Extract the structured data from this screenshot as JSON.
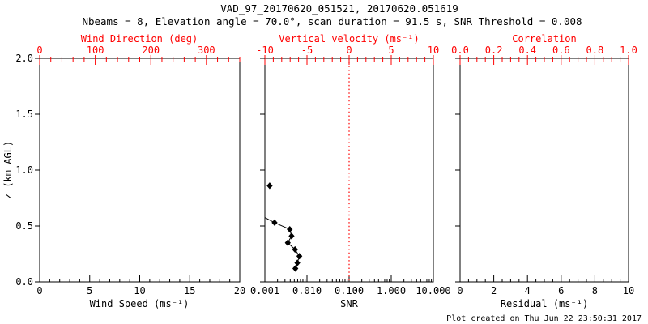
{
  "title": "VAD_97_20170620_051521, 20170620.051619",
  "subtitle": "Nbeams = 8, Elevation angle = 70.0°, scan duration = 91.5 s, SNR Threshold = 0.008",
  "footer": "Plot created on Thu Jun 22 23:50:31 2017",
  "ylabel": "z (km AGL)",
  "colors": {
    "axis": "#000000",
    "secondary_axis": "#ff0000",
    "data": "#000000",
    "background": "#ffffff"
  },
  "chart_data": [
    {
      "type": "line",
      "panel": "wind",
      "x_bottom": {
        "label": "Wind Speed (ms⁻¹)",
        "scale": "linear",
        "range": [
          0,
          20
        ],
        "ticks": [
          0,
          5,
          10,
          15,
          20
        ],
        "tick_labels": [
          "0",
          "5",
          "10",
          "15",
          "20"
        ],
        "minor_step": 1
      },
      "x_top": {
        "label": "Wind Direction (deg)",
        "scale": "linear",
        "range": [
          0,
          360
        ],
        "ticks": [
          0,
          100,
          200,
          300
        ],
        "tick_labels": [
          "0",
          "100",
          "200",
          "300"
        ],
        "minor_step": 20
      },
      "y": {
        "range": [
          0,
          2
        ],
        "ticks": [
          0,
          0.5,
          1.0,
          1.5,
          2.0
        ],
        "tick_labels": [
          "0.0",
          "0.5",
          "1.0",
          "1.5",
          "2.0"
        ],
        "show_labels": true
      },
      "series": []
    },
    {
      "type": "line",
      "panel": "snr",
      "x_bottom": {
        "label": "SNR",
        "scale": "log",
        "range": [
          0.001,
          10
        ],
        "ticks": [
          0.001,
          0.01,
          0.1,
          1,
          10
        ],
        "tick_labels": [
          "0.001",
          "0.010",
          "0.100",
          "1.000",
          "10.000"
        ]
      },
      "x_top": {
        "label": "Vertical velocity (ms⁻¹)",
        "scale": "linear",
        "range": [
          -10,
          10
        ],
        "ticks": [
          -10,
          -5,
          0,
          5,
          10
        ],
        "tick_labels": [
          "-10",
          "-5",
          "0",
          "5",
          "10"
        ],
        "minor_step": 1
      },
      "y": {
        "range": [
          0,
          2
        ],
        "ticks": [
          0,
          0.5,
          1.0,
          1.5,
          2.0
        ],
        "tick_labels": [
          "0.0",
          "0.5",
          "1.0",
          "1.5",
          "2.0"
        ],
        "show_labels": false
      },
      "refline": {
        "axis": "x_top",
        "value": 0,
        "style": "dotted",
        "color": "#ff0000"
      },
      "series": [
        {
          "name": "snr-profile-line",
          "draw": "line",
          "points": [
            [
              0.001,
              0.575
            ],
            [
              0.0017,
              0.53
            ],
            [
              0.0039,
              0.47
            ],
            [
              0.0043,
              0.41
            ],
            [
              0.0035,
              0.35
            ],
            [
              0.0052,
              0.29
            ],
            [
              0.0066,
              0.23
            ],
            [
              0.0059,
              0.17
            ],
            [
              0.0053,
              0.12
            ]
          ]
        },
        {
          "name": "snr-profile-markers",
          "draw": "markers",
          "marker": "filled-diamond",
          "points": [
            [
              0.0013,
              0.86
            ],
            [
              0.0017,
              0.53
            ],
            [
              0.0039,
              0.47
            ],
            [
              0.0043,
              0.41
            ],
            [
              0.0035,
              0.35
            ],
            [
              0.0052,
              0.29
            ],
            [
              0.0066,
              0.23
            ],
            [
              0.0059,
              0.17
            ],
            [
              0.0053,
              0.12
            ]
          ]
        }
      ]
    },
    {
      "type": "line",
      "panel": "residual",
      "x_bottom": {
        "label": "Residual (ms⁻¹)",
        "scale": "linear",
        "range": [
          0,
          10
        ],
        "ticks": [
          0,
          2,
          4,
          6,
          8,
          10
        ],
        "tick_labels": [
          "0",
          "2",
          "4",
          "6",
          "8",
          "10"
        ],
        "minor_step": 0.5
      },
      "x_top": {
        "label": "Correlation",
        "scale": "linear",
        "range": [
          0,
          1
        ],
        "ticks": [
          0,
          0.2,
          0.4,
          0.6,
          0.8,
          1.0
        ],
        "tick_labels": [
          "0.0",
          "0.2",
          "0.4",
          "0.6",
          "0.8",
          "1.0"
        ],
        "minor_step": 0.05
      },
      "y": {
        "range": [
          0,
          2
        ],
        "ticks": [
          0,
          0.5,
          1.0,
          1.5,
          2.0
        ],
        "tick_labels": [
          "0.0",
          "0.5",
          "1.0",
          "1.5",
          "2.0"
        ],
        "show_labels": false
      },
      "series": []
    }
  ]
}
